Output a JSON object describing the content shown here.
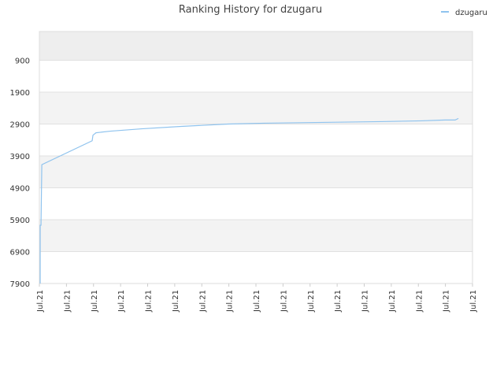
{
  "chart_data": {
    "type": "line",
    "title": "Ranking History for dzugaru",
    "x": [
      0.03,
      0.03,
      0.06,
      0.09,
      1.95,
      1.98,
      2.09,
      2.62,
      3.78,
      5.24,
      6.98,
      8.29,
      10.47,
      12.6,
      14.11,
      14.98,
      15.36,
      15.48
    ],
    "series": [
      {
        "name": "dzugaru",
        "color": "#8fc3ee",
        "values": [
          7900,
          6075,
          6075,
          4175,
          3425,
          3250,
          3175,
          3125,
          3050,
          2975,
          2900,
          2875,
          2850,
          2825,
          2800,
          2775,
          2775,
          2725
        ]
      }
    ],
    "xlim": [
      0,
      16
    ],
    "xticks": [
      {
        "value": 0,
        "label": "Jul.21"
      },
      {
        "value": 1,
        "label": "Jul.21"
      },
      {
        "value": 2,
        "label": "Jul.21"
      },
      {
        "value": 3,
        "label": "Jul.21"
      },
      {
        "value": 4,
        "label": "Jul.21"
      },
      {
        "value": 5,
        "label": "Jul.21"
      },
      {
        "value": 6,
        "label": "Jul.21"
      },
      {
        "value": 7,
        "label": "Jul.21"
      },
      {
        "value": 8,
        "label": "Jul.21"
      },
      {
        "value": 9,
        "label": "Jul.21"
      },
      {
        "value": 10,
        "label": "Jul.21"
      },
      {
        "value": 11,
        "label": "Jul.21"
      },
      {
        "value": 12,
        "label": "Jul.21"
      },
      {
        "value": 13,
        "label": "Jul.21"
      },
      {
        "value": 14,
        "label": "Jul.21"
      },
      {
        "value": 15,
        "label": "Jul.21"
      },
      {
        "value": 16,
        "label": "Jul.21"
      }
    ],
    "ylim": [
      7900,
      0
    ],
    "yticks": [
      900,
      1900,
      2900,
      3900,
      4900,
      5900,
      6900,
      7900
    ],
    "grid": true,
    "legend": "top-right"
  }
}
